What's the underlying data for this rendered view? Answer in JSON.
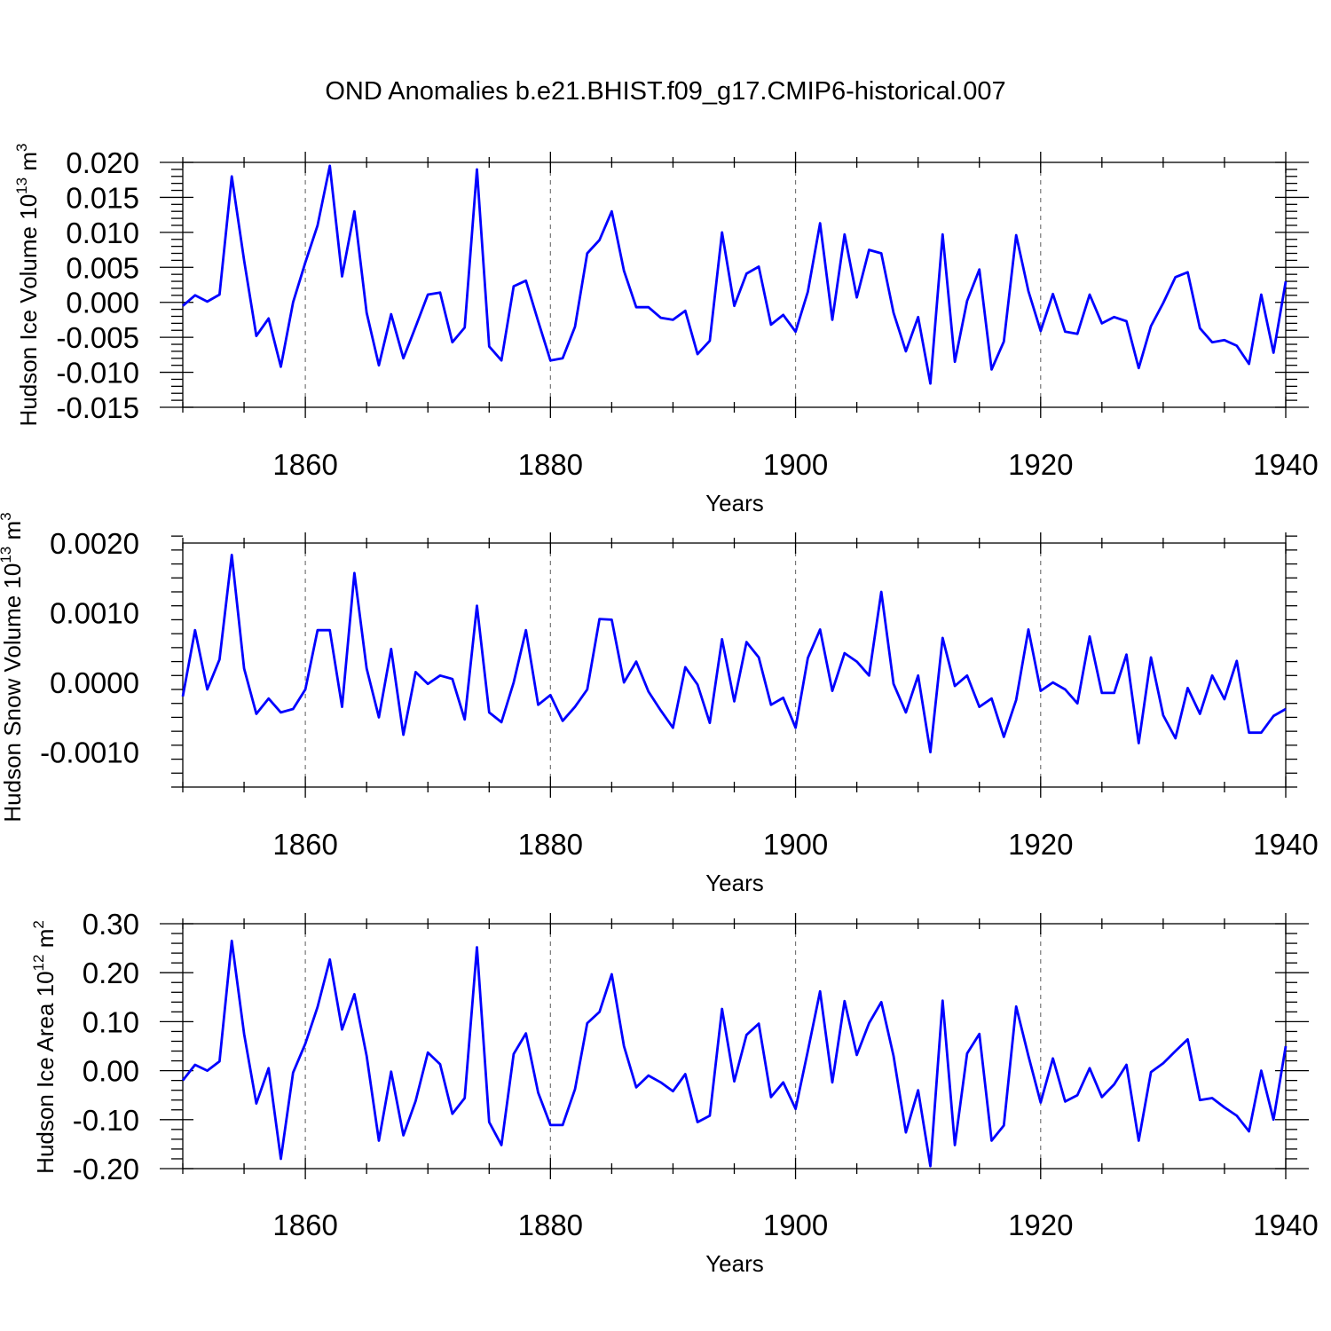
{
  "chart_data": {
    "title": "OND Anomalies b.e21.BHIST.f09_g17.CMIP6-historical.007",
    "type": "line",
    "series_color": "#0000ff",
    "panels": [
      {
        "id": "ice-volume",
        "ylabel_main": "Hudson Ice Volume 10",
        "ylabel_exp": "13",
        "ylabel_unit": " m",
        "ylabel_unit_exp": "3",
        "xlabel": "Years",
        "xlim": [
          1850,
          1940
        ],
        "ylim": [
          -0.015,
          0.02
        ],
        "x_ticks": [
          1860,
          1880,
          1900,
          1920,
          1940
        ],
        "x_tick_labels": [
          "1860",
          "1880",
          "1900",
          "1920",
          "1940"
        ],
        "y_ticks": [
          -0.015,
          -0.01,
          -0.005,
          0.0,
          0.005,
          0.01,
          0.015,
          0.02
        ],
        "y_tick_labels": [
          "-0.015",
          "-0.010",
          "-0.005",
          "0.000",
          "0.005",
          "0.010",
          "0.015",
          "0.020"
        ],
        "y_minor_step": 0.001,
        "x_minor_step": 5,
        "grid_x": [
          1860,
          1880,
          1900,
          1920
        ],
        "x_start": 1850,
        "values": [
          -0.0005,
          0.001,
          0.0001,
          0.0011,
          0.018,
          0.006,
          -0.0048,
          -0.0023,
          -0.0092,
          0.0,
          0.0057,
          0.011,
          0.0195,
          0.0037,
          0.013,
          -0.0015,
          -0.009,
          -0.0017,
          -0.008,
          -0.0035,
          0.0011,
          0.0014,
          -0.0057,
          -0.0036,
          0.019,
          -0.0063,
          -0.0083,
          0.0023,
          0.0031,
          -0.0027,
          -0.0083,
          -0.008,
          -0.0035,
          0.007,
          0.0089,
          0.013,
          0.0045,
          -0.0007,
          -0.0007,
          -0.0022,
          -0.0025,
          -0.0012,
          -0.0074,
          -0.0055,
          0.01,
          -0.0005,
          0.0041,
          0.0051,
          -0.0032,
          -0.0018,
          -0.0042,
          0.0015,
          0.0113,
          -0.0025,
          0.0097,
          0.0007,
          0.0075,
          0.007,
          -0.0015,
          -0.007,
          -0.0021,
          -0.0116,
          0.0097,
          -0.0085,
          0.0002,
          0.0047,
          -0.0096,
          -0.0056,
          0.0096,
          0.0016,
          -0.0041,
          0.0012,
          -0.0042,
          -0.0045,
          0.0011,
          -0.003,
          -0.0021,
          -0.0027,
          -0.0094,
          -0.0034,
          -0.0001,
          0.0036,
          0.0043,
          -0.0037,
          -0.0057,
          -0.0054,
          -0.0062,
          -0.0088,
          0.0011,
          -0.0072,
          0.003
        ]
      },
      {
        "id": "snow-volume",
        "ylabel_main": "Hudson Snow Volume 10",
        "ylabel_exp": "13",
        "ylabel_unit": " m",
        "ylabel_unit_exp": "3",
        "xlabel": "Years",
        "xlim": [
          1850,
          1940
        ],
        "ylim": [
          -0.0015,
          0.002
        ],
        "x_ticks": [
          1860,
          1880,
          1900,
          1920,
          1940
        ],
        "x_tick_labels": [
          "1860",
          "1880",
          "1900",
          "1920",
          "1940"
        ],
        "y_ticks": [
          -0.001,
          0.0,
          0.001,
          0.002
        ],
        "y_tick_labels": [
          "-0.0010",
          "0.0000",
          "0.0010",
          "0.0020"
        ],
        "y_minor_step": 0.0002,
        "x_minor_step": 5,
        "grid_x": [
          1860,
          1880,
          1900,
          1920
        ],
        "x_start": 1850,
        "values": [
          -0.0002,
          0.00075,
          -0.0001,
          0.00033,
          0.00183,
          0.0002,
          -0.00045,
          -0.00023,
          -0.00043,
          -0.00038,
          -0.0001,
          0.00075,
          0.00075,
          -0.00035,
          0.00157,
          0.0002,
          -0.0005,
          0.00048,
          -0.00075,
          0.00015,
          -2e-05,
          0.0001,
          5e-05,
          -0.00053,
          0.0011,
          -0.00043,
          -0.00057,
          0.0,
          0.00075,
          -0.00032,
          -0.00018,
          -0.00055,
          -0.00035,
          -0.0001,
          0.00091,
          0.0009,
          0.0,
          0.0003,
          -0.00013,
          -0.0004,
          -0.00065,
          0.00022,
          -3e-05,
          -0.00058,
          0.00062,
          -0.00027,
          0.00058,
          0.00036,
          -0.00032,
          -0.00022,
          -0.00065,
          0.00035,
          0.00076,
          -0.00012,
          0.00042,
          0.0003,
          0.0001,
          0.0013,
          -2e-05,
          -0.00043,
          0.0001,
          -0.001,
          0.00064,
          -5e-05,
          0.0001,
          -0.00035,
          -0.00023,
          -0.00078,
          -0.00025,
          0.00076,
          -0.00012,
          0.0,
          -0.0001,
          -0.0003,
          0.00066,
          -0.00015,
          -0.00015,
          0.0004,
          -0.00087,
          0.00036,
          -0.00047,
          -0.0008,
          -8e-05,
          -0.00045,
          0.0001,
          -0.00024,
          0.00031,
          -0.00072,
          -0.00072,
          -0.00048,
          -0.00038
        ]
      },
      {
        "id": "ice-area",
        "ylabel_main": "Hudson Ice Area 10",
        "ylabel_exp": "12",
        "ylabel_unit": " m",
        "ylabel_unit_exp": "2",
        "xlabel": "Years",
        "xlim": [
          1850,
          1940
        ],
        "ylim": [
          -0.2,
          0.3
        ],
        "x_ticks": [
          1860,
          1880,
          1900,
          1920,
          1940
        ],
        "x_tick_labels": [
          "1860",
          "1880",
          "1900",
          "1920",
          "1940"
        ],
        "y_ticks": [
          -0.2,
          -0.1,
          0.0,
          0.1,
          0.2,
          0.3
        ],
        "y_tick_labels": [
          "-0.20",
          "-0.10",
          "0.00",
          "0.10",
          "0.20",
          "0.30"
        ],
        "y_minor_step": 0.02,
        "x_minor_step": 5,
        "grid_x": [
          1860,
          1880,
          1900,
          1920
        ],
        "x_start": 1850,
        "values": [
          -0.02,
          0.012,
          0.0,
          0.019,
          0.265,
          0.075,
          -0.067,
          0.005,
          -0.18,
          -0.004,
          0.055,
          0.13,
          0.227,
          0.084,
          0.156,
          0.03,
          -0.143,
          -0.002,
          -0.132,
          -0.062,
          0.037,
          0.013,
          -0.088,
          -0.056,
          0.252,
          -0.105,
          -0.152,
          0.034,
          0.076,
          -0.045,
          -0.111,
          -0.111,
          -0.038,
          0.097,
          0.12,
          0.197,
          0.05,
          -0.034,
          -0.01,
          -0.024,
          -0.042,
          -0.007,
          -0.105,
          -0.092,
          0.126,
          -0.022,
          0.073,
          0.096,
          -0.054,
          -0.024,
          -0.078,
          0.04,
          0.162,
          -0.024,
          0.142,
          0.032,
          0.097,
          0.14,
          0.03,
          -0.126,
          -0.04,
          -0.195,
          0.143,
          -0.152,
          0.035,
          0.075,
          -0.143,
          -0.112,
          0.131,
          0.03,
          -0.065,
          0.025,
          -0.063,
          -0.05,
          0.005,
          -0.054,
          -0.028,
          0.012,
          -0.143,
          -0.003,
          0.015,
          0.04,
          0.064,
          -0.06,
          -0.056,
          -0.075,
          -0.092,
          -0.124,
          0.0,
          -0.1,
          0.05
        ]
      }
    ]
  }
}
